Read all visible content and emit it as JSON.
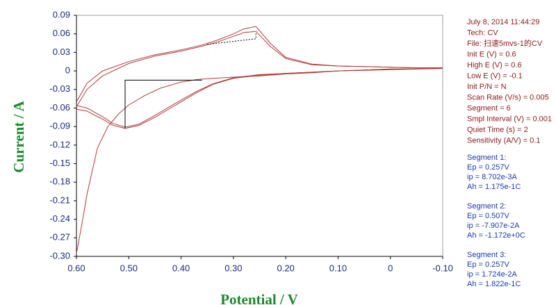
{
  "chart_data": {
    "type": "line",
    "x_label": "Potential / V",
    "y_label": "Current / A",
    "xlim": [
      0.6,
      -0.1
    ],
    "ylim": [
      -0.3,
      0.09
    ],
    "xticks": [
      {
        "value": 0.6,
        "label": "0.60"
      },
      {
        "value": 0.5,
        "label": "0.50"
      },
      {
        "value": 0.4,
        "label": "0.40"
      },
      {
        "value": 0.3,
        "label": "0.30"
      },
      {
        "value": 0.2,
        "label": "0.20"
      },
      {
        "value": 0.1,
        "label": "0.10"
      },
      0,
      {
        "value": -0.1,
        "label": "-0.10"
      }
    ],
    "yticks": [
      0.09,
      0.06,
      0.03,
      0,
      -0.03,
      -0.06,
      -0.09,
      -0.12,
      -0.15,
      -0.18,
      -0.21,
      -0.24,
      -0.27,
      {
        "value": -0.3,
        "label": "-0.30"
      }
    ],
    "series": [
      {
        "color": "#b03a3a",
        "x": [
          0.6,
          0.59,
          0.58,
          0.56,
          0.54,
          0.52,
          0.5,
          0.47,
          0.44,
          0.4,
          0.37,
          0.34,
          0.3,
          0.25,
          0.2,
          0.15,
          0.1,
          0.05,
          0,
          -0.05,
          -0.1
        ],
        "values": [
          -0.295,
          -0.25,
          -0.2,
          -0.125,
          -0.09,
          -0.07,
          -0.055,
          -0.04,
          -0.028,
          -0.018,
          -0.014,
          -0.012,
          -0.01,
          -0.008,
          -0.005,
          -0.003,
          0,
          0.001,
          0.002,
          0.003,
          0.004
        ]
      },
      {
        "color": "#b03a3a",
        "x": [
          -0.1,
          -0.05,
          0,
          0.05,
          0.1,
          0.15,
          0.2,
          0.23,
          0.257,
          0.28,
          0.3,
          0.33,
          0.36,
          0.4,
          0.45,
          0.5,
          0.55,
          0.58,
          0.6
        ],
        "values": [
          0.005,
          0.005,
          0.006,
          0.007,
          0.008,
          0.011,
          0.022,
          0.045,
          0.072,
          0.068,
          0.06,
          0.05,
          0.042,
          0.034,
          0.026,
          0.015,
          0,
          -0.02,
          -0.05
        ]
      },
      {
        "color": "#b03a3a",
        "x": [
          -0.1,
          -0.05,
          0,
          0.05,
          0.1,
          0.15,
          0.2,
          0.23,
          0.257,
          0.28,
          0.3,
          0.33,
          0.36,
          0.4,
          0.45,
          0.5,
          0.55,
          0.58,
          0.6
        ],
        "values": [
          0.005,
          0.005,
          0.006,
          0.007,
          0.008,
          0.01,
          0.02,
          0.04,
          0.064,
          0.062,
          0.056,
          0.047,
          0.04,
          0.032,
          0.024,
          0.012,
          -0.008,
          -0.03,
          -0.058
        ]
      },
      {
        "color": "#b03a3a",
        "x": [
          0.6,
          0.58,
          0.55,
          0.53,
          0.507,
          0.48,
          0.45,
          0.42,
          0.4,
          0.37,
          0.34,
          0.3,
          0.25,
          0.2,
          0.1,
          0,
          -0.1
        ],
        "values": [
          -0.062,
          -0.065,
          -0.078,
          -0.088,
          -0.093,
          -0.088,
          -0.075,
          -0.06,
          -0.05,
          -0.035,
          -0.022,
          -0.012,
          -0.007,
          -0.004,
          0,
          0.003,
          0.004
        ]
      },
      {
        "color": "#b03a3a",
        "x": [
          0.6,
          0.58,
          0.55,
          0.53,
          0.507,
          0.48,
          0.45,
          0.42,
          0.4,
          0.37,
          0.34,
          0.3,
          0.25,
          0.2,
          0.1,
          0,
          -0.1
        ],
        "values": [
          -0.056,
          -0.06,
          -0.074,
          -0.085,
          -0.091,
          -0.086,
          -0.072,
          -0.057,
          -0.047,
          -0.033,
          -0.021,
          -0.011,
          -0.006,
          -0.004,
          0,
          0.003,
          0.004
        ]
      },
      {
        "color": "#000000",
        "dash": true,
        "x": [
          0.35,
          0.257,
          0.257
        ],
        "values": [
          0.043,
          0.052,
          0.0607
        ]
      },
      {
        "color": "#000000",
        "x": [
          0.36,
          0.507,
          0.507
        ],
        "values": [
          -0.015,
          -0.015,
          -0.093
        ]
      }
    ],
    "info": [
      "July 8, 2014   11:44:29",
      "Tech: CV",
      "File: 扫速5mvs-1的CV",
      "Init E (V) = 0.6",
      "High E (V) = 0.6",
      "Low E (V) = -0.1",
      "Init P/N = N",
      "Scan Rate (V/s) = 0.005",
      "Segment = 6",
      "Smpl Interval (V) = 0.001",
      "Quiet Time (s) = 2",
      "Sensitivity (A/V) = 0.1"
    ],
    "segments": [
      [
        "Segment 1:",
        "Ep = 0.257V",
        "ip = 8.702e-3A",
        "Ah = 1.175e-1C"
      ],
      [
        "Segment 2:",
        "Ep = 0.507V",
        "ip = -7.907e-2A",
        "Ah = -1.172e+0C"
      ],
      [
        "Segment 3:",
        "Ep = 0.257V",
        "ip = 1.724e-2A",
        "Ah = 1.822e-1C"
      ]
    ]
  }
}
